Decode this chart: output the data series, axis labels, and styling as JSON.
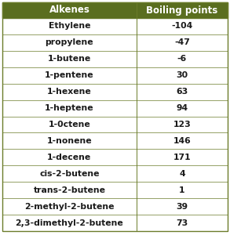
{
  "col1_header": "Alkenes",
  "col2_header": "Boiling points",
  "rows": [
    [
      "Ethylene",
      "-104"
    ],
    [
      "propylene",
      "-47"
    ],
    [
      "1-butene",
      "-6"
    ],
    [
      "1-pentene",
      "30"
    ],
    [
      "1-hexene",
      "63"
    ],
    [
      "1-heptene",
      "94"
    ],
    [
      "1-0ctene",
      "123"
    ],
    [
      "1-nonene",
      "146"
    ],
    [
      "1-decene",
      "171"
    ],
    [
      "cis-2-butene",
      "4"
    ],
    [
      "trans-2-butene",
      "1"
    ],
    [
      "2-methyl-2-butene",
      "39"
    ],
    [
      "2,3-dimethyl-2-butene",
      "73"
    ]
  ],
  "header_bg": "#5a6e1f",
  "header_text": "#ffffff",
  "border_color": "#6b7c2a",
  "text_color": "#1a1a1a",
  "header_fontsize": 8.5,
  "row_fontsize": 7.8,
  "col_split": 0.595
}
